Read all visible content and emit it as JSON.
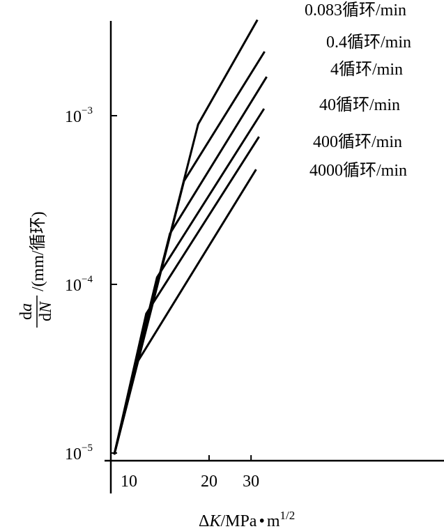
{
  "chart_data": {
    "type": "line",
    "title": "",
    "xlabel": "ΔK/MPa·m^1/2",
    "xlabel_parts": {
      "delta": "Δ",
      "var": "K",
      "unit": "/MPa",
      "dot": "•",
      "unit2": "m",
      "exp": "1/2"
    },
    "ylabel_parts": {
      "num_d": "d",
      "num_var": "a",
      "den_d": "d",
      "den_var": "N",
      "unit": "/(mm/循环)"
    },
    "x_scale": "log",
    "y_scale": "log",
    "xlim": [
      8,
      80
    ],
    "ylim": [
      8.5e-06,
      0.0046
    ],
    "x_ticks": [
      {
        "value": 10,
        "label": "10"
      },
      {
        "value": 20,
        "label": "20"
      },
      {
        "value": 30,
        "label": "30"
      }
    ],
    "y_ticks": [
      {
        "value": 1e-05,
        "base": "10",
        "exp": "−5"
      },
      {
        "value": 0.0001,
        "base": "10",
        "exp": "−4"
      },
      {
        "value": 0.001,
        "base": "10",
        "exp": "−3"
      }
    ],
    "grid": false,
    "legend": "inline-end-labels",
    "series": [
      {
        "name": "0.083循环/min",
        "x": [
          8.0,
          18.0,
          31.9
        ],
        "y": [
          9.8e-06,
          0.00089,
          0.0037
        ]
      },
      {
        "name": "0.4循环/min",
        "x": [
          8.0,
          15.7,
          34.2
        ],
        "y": [
          9.8e-06,
          0.00041,
          0.0024
        ]
      },
      {
        "name": "4循环/min",
        "x": [
          8.0,
          13.7,
          34.9
        ],
        "y": [
          9.8e-06,
          0.0002,
          0.0017
        ]
      },
      {
        "name": "40循环/min",
        "x": [
          8.0,
          12.1,
          34.0
        ],
        "y": [
          9.8e-06,
          0.00011,
          0.0011
        ]
      },
      {
        "name": "400循环/min",
        "x": [
          8.0,
          10.9,
          32.4
        ],
        "y": [
          9.8e-06,
          6.7e-05,
          0.00075
        ]
      },
      {
        "name": "4000循环/min",
        "x": [
          8.0,
          9.8,
          31.5
        ],
        "y": [
          9.8e-06,
          3.3e-05,
          0.00048
        ]
      }
    ]
  }
}
